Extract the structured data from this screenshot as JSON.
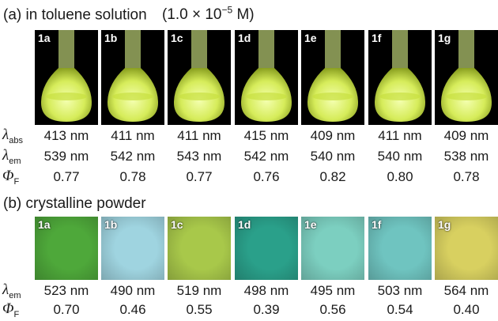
{
  "part_a": {
    "title": "(a) in toluene solution",
    "concentration_prefix": "(1.0 × 10",
    "concentration_exp": "−5",
    "concentration_suffix": " M)",
    "samples": [
      "1a",
      "1b",
      "1c",
      "1d",
      "1e",
      "1f",
      "1g"
    ],
    "labels": {
      "abs_sym": "λ",
      "abs_sub": "abs",
      "em_sym": "λ",
      "em_sub": "em",
      "phi_sym": "Φ",
      "phi_sub": "F"
    },
    "lambda_abs": [
      "413 nm",
      "411 nm",
      "411 nm",
      "415 nm",
      "409 nm",
      "411 nm",
      "409 nm"
    ],
    "lambda_em": [
      "539 nm",
      "542 nm",
      "543 nm",
      "542 nm",
      "540 nm",
      "540 nm",
      "538 nm"
    ],
    "phi_f": [
      "0.77",
      "0.78",
      "0.77",
      "0.76",
      "0.82",
      "0.80",
      "0.78"
    ]
  },
  "part_b": {
    "title": "(b) crystalline powder",
    "samples": [
      "1a",
      "1b",
      "1c",
      "1d",
      "1e",
      "1f",
      "1g"
    ],
    "labels": {
      "em_sym": "λ",
      "em_sub": "em",
      "phi_sym": "Φ",
      "phi_sub": "F"
    },
    "lambda_em": [
      "523 nm",
      "490 nm",
      "519 nm",
      "498 nm",
      "495 nm",
      "503 nm",
      "564 nm"
    ],
    "phi_f": [
      "0.70",
      "0.46",
      "0.55",
      "0.39",
      "0.56",
      "0.54",
      "0.40"
    ],
    "colors": [
      "#4ea83a",
      "#9fd4e0",
      "#a8c84a",
      "#2aa08a",
      "#7ccfc0",
      "#6fc4c0",
      "#d8d060"
    ]
  }
}
